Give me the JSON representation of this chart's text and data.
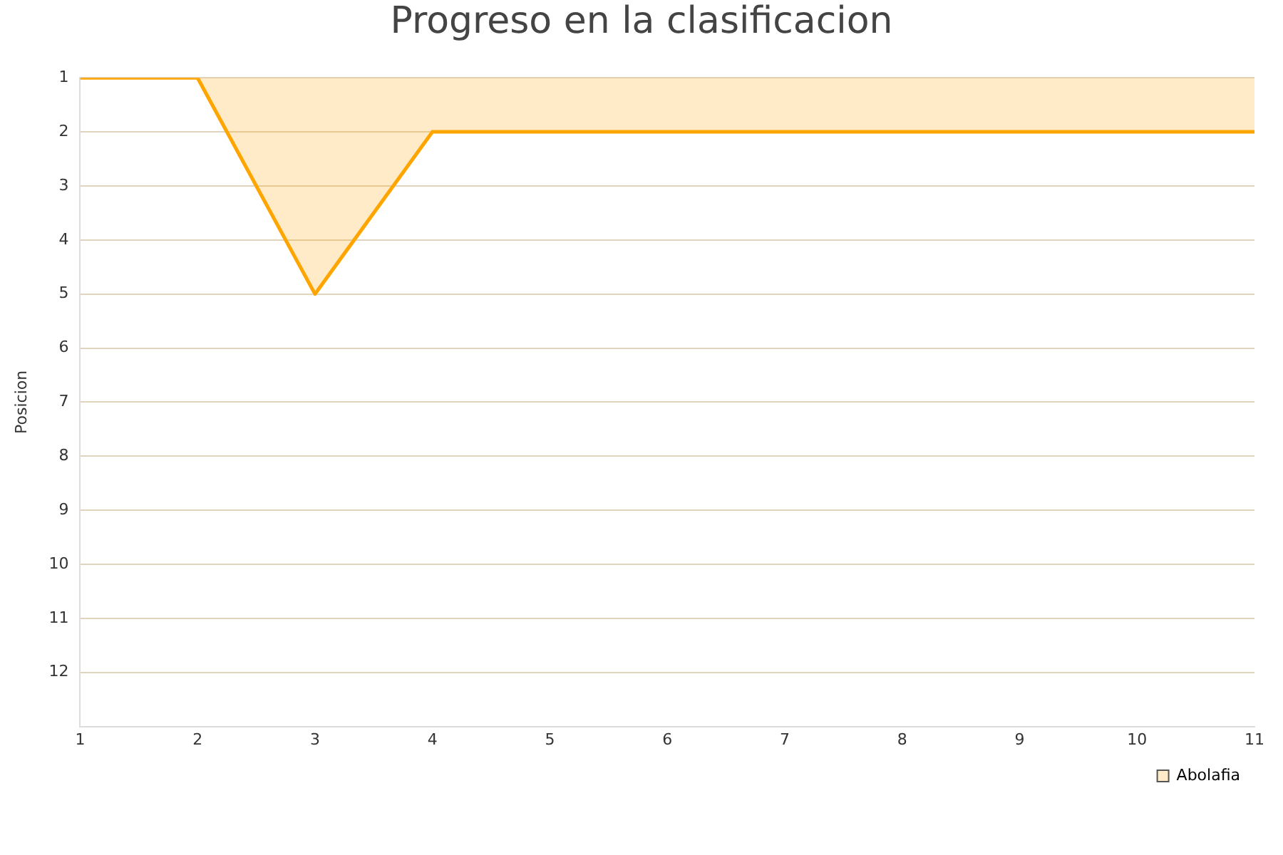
{
  "chart_data": {
    "type": "area",
    "title": "Progreso en la clasificacion",
    "ylabel": "Posicion",
    "x": [
      1,
      2,
      3,
      4,
      5,
      6,
      7,
      8,
      9,
      10,
      11
    ],
    "series": [
      {
        "name": "Abolafia",
        "color": "#ffa500",
        "values": [
          1,
          1,
          5,
          2,
          2,
          2,
          2,
          2,
          2,
          2,
          2
        ]
      }
    ],
    "xlim": [
      1,
      11
    ],
    "xticks": [
      1,
      2,
      3,
      4,
      5,
      6,
      7,
      8,
      9,
      10,
      11
    ],
    "ylim": [
      13,
      1
    ],
    "yticks": [
      1,
      2,
      3,
      4,
      5,
      6,
      7,
      8,
      9,
      10,
      11,
      12
    ],
    "grid": "y",
    "legend": "bottom right"
  }
}
